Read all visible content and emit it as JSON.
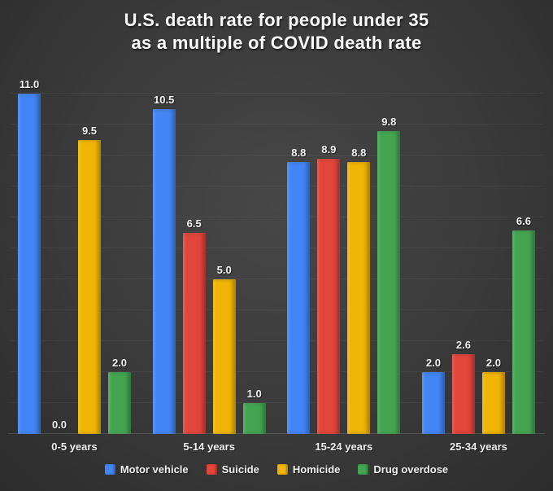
{
  "title": {
    "line1": "U.S. death rate for people under 35",
    "line2": "as a multiple of COVID death rate"
  },
  "chart_data": {
    "type": "bar",
    "title": "U.S. death rate for people under 35 as a multiple of COVID death rate",
    "categories": [
      "0-5 years",
      "5-14 years",
      "15-24 years",
      "25-34 years"
    ],
    "series": [
      {
        "name": "Motor vehicle",
        "color": "#4285f4",
        "values": [
          11.0,
          10.5,
          8.8,
          2.0
        ]
      },
      {
        "name": "Suicide",
        "color": "#e2453a",
        "values": [
          0.0,
          6.5,
          8.9,
          2.6
        ]
      },
      {
        "name": "Homicide",
        "color": "#f0b505",
        "values": [
          9.5,
          5.0,
          8.8,
          2.0
        ]
      },
      {
        "name": "Drug overdose",
        "color": "#43a551",
        "values": [
          2.0,
          1.0,
          9.8,
          6.6
        ]
      }
    ],
    "ylim": [
      0,
      11.5
    ],
    "grid": true,
    "value_labels": true,
    "legend_position": "bottom",
    "background": "#3d3d3d",
    "text_color": "#f5f5f5"
  }
}
